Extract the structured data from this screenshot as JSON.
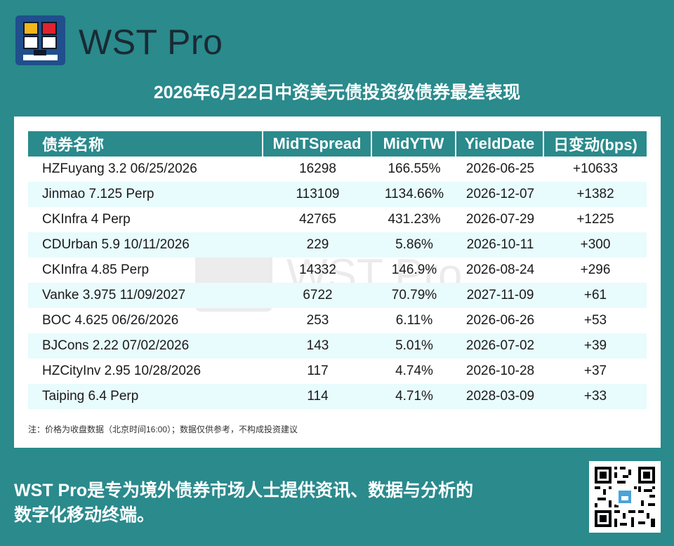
{
  "brand": {
    "name": "WST Pro",
    "logo_icon": "monitor-grid-logo",
    "colors": {
      "background": "#2a8a8c",
      "header": "#2a8a8c",
      "row_alt": "#e8fbfd"
    }
  },
  "title": "2026年6月22日中资美元债投资级债券最差表现",
  "table": {
    "headers": [
      "债券名称",
      "MidTSpread",
      "MidYTW",
      "YieldDate",
      "日变动(bps)"
    ],
    "rows": [
      [
        "HZFuyang 3.2 06/25/2026",
        "16298",
        "166.55%",
        "2026-06-25",
        "+10633"
      ],
      [
        "Jinmao 7.125 Perp",
        "113109",
        "1134.66%",
        "2026-12-07",
        "+1382"
      ],
      [
        "CKInfra 4 Perp",
        "42765",
        "431.23%",
        "2026-07-29",
        "+1225"
      ],
      [
        "CDUrban 5.9 10/11/2026",
        "229",
        "5.86%",
        "2026-10-11",
        "+300"
      ],
      [
        "CKInfra 4.85 Perp",
        "14332",
        "146.9%",
        "2026-08-24",
        "+296"
      ],
      [
        "Vanke 3.975 11/09/2027",
        "6722",
        "70.79%",
        "2027-11-09",
        "+61"
      ],
      [
        "BOC 4.625 06/26/2026",
        "253",
        "6.11%",
        "2026-06-26",
        "+53"
      ],
      [
        "BJCons 2.22 07/02/2026",
        "143",
        "5.01%",
        "2026-07-02",
        "+39"
      ],
      [
        "HZCityInv 2.95 10/28/2026",
        "117",
        "4.74%",
        "2026-10-28",
        "+37"
      ],
      [
        "Taiping 6.4 Perp",
        "114",
        "4.71%",
        "2028-03-09",
        "+33"
      ]
    ]
  },
  "note": "注：价格为收盘数据（北京时间16:00）；数据仅供参考，不构成投资建议",
  "footer": {
    "line1": "WST Pro是专为境外债券市场人士提供资讯、数据与分析的",
    "line2": "数字化移动终端。"
  },
  "qr": {
    "icon": "qr-code-icon"
  }
}
